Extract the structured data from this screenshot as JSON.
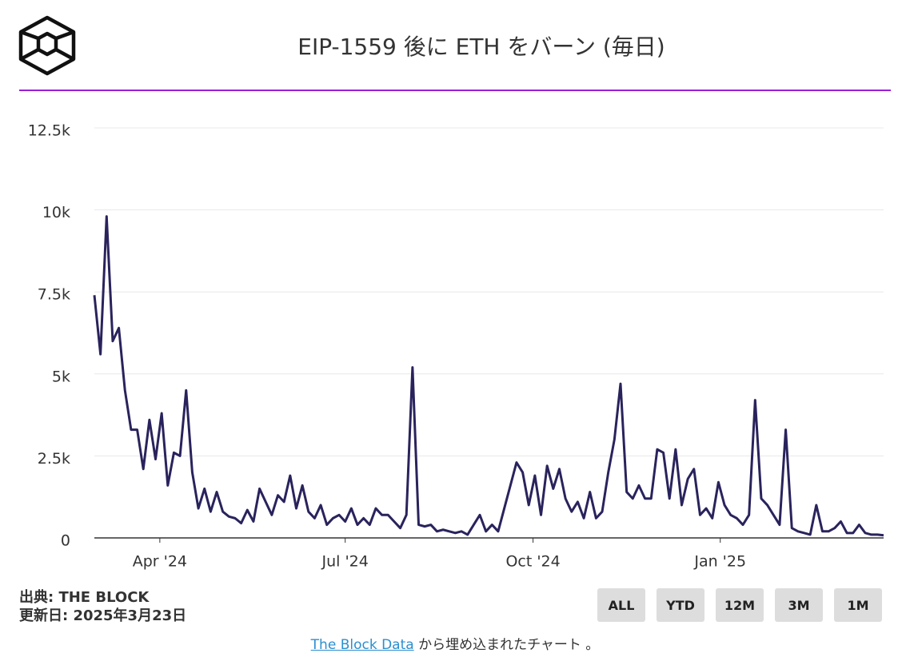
{
  "chart_data": {
    "type": "line",
    "title": "EIP-1559 後に ETH をバーン (毎日)",
    "color": "#29235c",
    "grid": true,
    "xlim": [
      0,
      129
    ],
    "xticks": [
      {
        "value": 10.7,
        "label": "Apr '24"
      },
      {
        "value": 41,
        "label": "Jul '24"
      },
      {
        "value": 71.7,
        "label": "Oct '24"
      },
      {
        "value": 102.3,
        "label": "Jan '25"
      }
    ],
    "ylim": [
      0,
      12500
    ],
    "yticks": [
      0,
      {
        "value": 2500,
        "label": "2.5k"
      },
      {
        "value": 5000,
        "label": "5k"
      },
      {
        "value": 7500,
        "label": "7.5k"
      },
      {
        "value": 10000,
        "label": "10k"
      },
      {
        "value": 12500,
        "label": "12.5k"
      }
    ],
    "values": [
      7400,
      5600,
      9800,
      6000,
      6400,
      4500,
      3300,
      3300,
      2100,
      3600,
      2400,
      3800,
      1600,
      2600,
      2500,
      4500,
      2000,
      900,
      1500,
      800,
      1400,
      800,
      650,
      600,
      450,
      850,
      500,
      1500,
      1100,
      700,
      1300,
      1100,
      1900,
      900,
      1600,
      800,
      600,
      1000,
      400,
      600,
      700,
      500,
      900,
      400,
      600,
      400,
      900,
      700,
      700,
      500,
      300,
      700,
      5200,
      400,
      350,
      400,
      200,
      250,
      200,
      150,
      200,
      100,
      400,
      700,
      200,
      400,
      200,
      900,
      1600,
      2300,
      2000,
      1000,
      1900,
      700,
      2200,
      1500,
      2100,
      1200,
      800,
      1100,
      600,
      1400,
      600,
      800,
      2000,
      3000,
      4700,
      1400,
      1200,
      1600,
      1200,
      1200,
      2700,
      2600,
      1200,
      2700,
      1000,
      1800,
      2100,
      700,
      900,
      600,
      1700,
      1000,
      700,
      600,
      400,
      700,
      4200,
      1200,
      1000,
      700,
      400,
      3300,
      300,
      200,
      150,
      100,
      1000,
      200,
      200,
      300,
      500,
      150,
      150,
      400,
      150,
      100,
      100,
      80
    ]
  },
  "footer": {
    "source": "出典: THE BLOCK",
    "updated": "更新日: 2025年3月23日",
    "buttons": [
      "ALL",
      "YTD",
      "12M",
      "3M",
      "1M"
    ],
    "embed_link": "The Block Data",
    "embed_text": "から埋め込まれたチャート 。"
  }
}
